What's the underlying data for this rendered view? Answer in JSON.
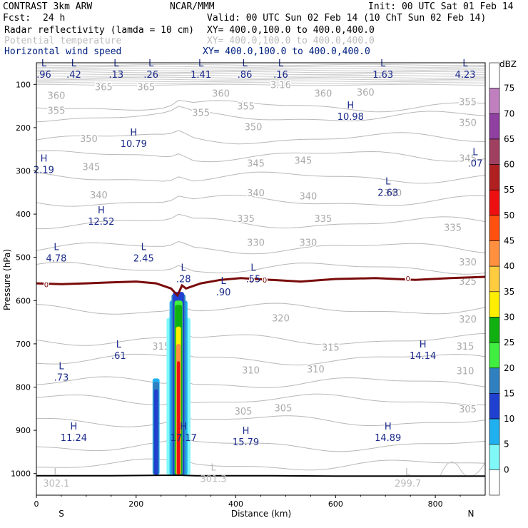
{
  "header": {
    "title_left": "CONTRAST  3km ARW",
    "center": "NCAR/MMM",
    "init": "Init: 00 UTC Sat 01 Feb 14",
    "fcst_label": "Fcst:",
    "fcst_value": "24 h",
    "valid": "Valid: 00 UTC Sun 02 Feb 14 (10 ChT Sun 02 Feb 14)",
    "fields": [
      {
        "name": "Radar reflectivity (lamda = 10 cm)",
        "xy": "XY= 400.0,100.0 to 400.0,400.0",
        "color": "#000000"
      },
      {
        "name": "Potential temperature",
        "xy": "XY= 400.0,100.0 to 400.0,400.0",
        "color": "#bbbbbb"
      },
      {
        "name": "Horizontal wind speed",
        "xy": "XY= 400.0,100.0 to 400.0,400.0",
        "color": "#002080"
      }
    ]
  },
  "chart_data": {
    "type": "cross-section",
    "xlabel": "Distance (km)",
    "ylabel": "Pressure (hPa)",
    "xlim": [
      0,
      900
    ],
    "ylim": [
      1050,
      50
    ],
    "x_ticks": [
      0,
      200,
      400,
      600,
      800
    ],
    "y_ticks": [
      100,
      200,
      300,
      400,
      500,
      600,
      700,
      800,
      900,
      1000
    ],
    "x_end_labels": {
      "left": "S",
      "right": "N"
    },
    "colorbar": {
      "label": "dBZ",
      "ticks": [
        "75",
        "70",
        "65",
        "60",
        "55",
        "50",
        "45",
        "40",
        "35",
        "30",
        "25",
        "20",
        "15",
        "10",
        "5",
        "0"
      ],
      "colors": [
        "#ffffff",
        "#c080c0",
        "#9040a0",
        "#a04060",
        "#b02020",
        "#ee1010",
        "#ff5010",
        "#ff9040",
        "#ffcc40",
        "#ffee00",
        "#10b010",
        "#40ee40",
        "#3080c0",
        "#2040d0",
        "#20b0f0",
        "#80f8f8",
        "#ffffff"
      ]
    },
    "theta_labels": [
      {
        "text": "360",
        "x": 40,
        "p": 125
      },
      {
        "text": "365",
        "x": 135,
        "p": 105
      },
      {
        "text": "365",
        "x": 220,
        "p": 105
      },
      {
        "text": "360",
        "x": 370,
        "p": 120
      },
      {
        "text": "360",
        "x": 575,
        "p": 120
      },
      {
        "text": "360",
        "x": 660,
        "p": 118
      },
      {
        "text": "3.16",
        "x": 490,
        "p": 100
      },
      {
        "text": "355",
        "x": 40,
        "p": 160
      },
      {
        "text": "355",
        "x": 330,
        "p": 165
      },
      {
        "text": "355",
        "x": 420,
        "p": 150
      },
      {
        "text": "355",
        "x": 865,
        "p": 140
      },
      {
        "text": "350",
        "x": 105,
        "p": 225
      },
      {
        "text": "350",
        "x": 435,
        "p": 198
      },
      {
        "text": "350",
        "x": 865,
        "p": 188
      },
      {
        "text": "345",
        "x": 110,
        "p": 290
      },
      {
        "text": "345",
        "x": 440,
        "p": 282
      },
      {
        "text": "345",
        "x": 535,
        "p": 275
      },
      {
        "text": "345",
        "x": 865,
        "p": 270
      },
      {
        "text": "340",
        "x": 125,
        "p": 355
      },
      {
        "text": "340",
        "x": 440,
        "p": 350
      },
      {
        "text": "340",
        "x": 545,
        "p": 358
      },
      {
        "text": "340",
        "x": 715,
        "p": 350
      },
      {
        "text": "335",
        "x": 420,
        "p": 410
      },
      {
        "text": "335",
        "x": 575,
        "p": 410
      },
      {
        "text": "335",
        "x": 835,
        "p": 430
      },
      {
        "text": "330",
        "x": 440,
        "p": 465
      },
      {
        "text": "330",
        "x": 545,
        "p": 465
      },
      {
        "text": "330",
        "x": 865,
        "p": 510
      },
      {
        "text": "325",
        "x": 865,
        "p": 555
      },
      {
        "text": "320",
        "x": 490,
        "p": 640
      },
      {
        "text": "320",
        "x": 865,
        "p": 642
      },
      {
        "text": "315",
        "x": 250,
        "p": 705
      },
      {
        "text": "315",
        "x": 590,
        "p": 708
      },
      {
        "text": "315",
        "x": 860,
        "p": 705
      },
      {
        "text": "310",
        "x": 430,
        "p": 760
      },
      {
        "text": "310",
        "x": 560,
        "p": 758
      },
      {
        "text": "310",
        "x": 860,
        "p": 762
      },
      {
        "text": "305",
        "x": 415,
        "p": 855
      },
      {
        "text": "305",
        "x": 495,
        "p": 848
      },
      {
        "text": "305",
        "x": 865,
        "p": 850
      }
    ],
    "wind_extrema": [
      {
        "type": "L",
        "value": ".96",
        "x": 15,
        "p": 65
      },
      {
        "type": "L",
        "value": ".42",
        "x": 75,
        "p": 65
      },
      {
        "type": "L",
        "value": ".13",
        "x": 160,
        "p": 65
      },
      {
        "type": "L",
        "value": ".26",
        "x": 230,
        "p": 65
      },
      {
        "type": "L",
        "value": "1.41",
        "x": 330,
        "p": 65
      },
      {
        "type": "L",
        "value": ".86",
        "x": 418,
        "p": 65
      },
      {
        "type": "L",
        "value": ".16",
        "x": 490,
        "p": 65
      },
      {
        "type": "L",
        "value": "1.63",
        "x": 695,
        "p": 65
      },
      {
        "type": "L",
        "value": "4.23",
        "x": 860,
        "p": 65
      },
      {
        "type": "H",
        "value": "10.98",
        "x": 630,
        "p": 162
      },
      {
        "type": "H",
        "value": "10.79",
        "x": 195,
        "p": 225
      },
      {
        "type": "H",
        "value": "2.19",
        "x": 15,
        "p": 285
      },
      {
        "type": "L",
        "value": ".07",
        "x": 880,
        "p": 270
      },
      {
        "type": "L",
        "value": "2.63",
        "x": 705,
        "p": 338
      },
      {
        "type": "H",
        "value": "12.52",
        "x": 130,
        "p": 405
      },
      {
        "type": "L",
        "value": "4.78",
        "x": 40,
        "p": 490
      },
      {
        "type": "L",
        "value": "2.45",
        "x": 215,
        "p": 490
      },
      {
        "type": "L",
        "value": ".28",
        "x": 295,
        "p": 538
      },
      {
        "type": "L",
        "value": ".55",
        "x": 435,
        "p": 538
      },
      {
        "type": "L",
        "value": ".90",
        "x": 375,
        "p": 568
      },
      {
        "type": "L",
        "value": ".61",
        "x": 165,
        "p": 715
      },
      {
        "type": "H",
        "value": "14.14",
        "x": 775,
        "p": 715
      },
      {
        "type": "L",
        "value": ".73",
        "x": 50,
        "p": 765
      },
      {
        "type": "H",
        "value": "11.24",
        "x": 75,
        "p": 905
      },
      {
        "type": "H",
        "value": "17.17",
        "x": 295,
        "p": 905
      },
      {
        "type": "H",
        "value": "15.79",
        "x": 420,
        "p": 915
      },
      {
        "type": "H",
        "value": "14.89",
        "x": 705,
        "p": 905
      },
      {
        "type": "L",
        "value": "302.1",
        "x": 40,
        "p": 1010
      },
      {
        "type": "L",
        "value": "301.3",
        "x": 355,
        "p": 1000
      },
      {
        "type": "L",
        "value": "299.7",
        "x": 745,
        "p": 1010
      }
    ],
    "zero_contour": {
      "label": "0",
      "x": [
        0,
        50,
        100,
        150,
        200,
        240,
        270,
        283,
        292,
        300,
        330,
        370,
        410,
        470,
        530,
        600,
        680,
        760,
        830,
        900
      ],
      "p": [
        560,
        562,
        560,
        558,
        556,
        560,
        572,
        588,
        565,
        572,
        560,
        552,
        548,
        552,
        556,
        550,
        548,
        552,
        548,
        545
      ]
    },
    "zero_labels": [
      {
        "x": 20,
        "p": 562
      },
      {
        "x": 432,
        "p": 552
      },
      {
        "x": 458,
        "p": 552
      },
      {
        "x": 745,
        "p": 548
      }
    ],
    "surface_line": {
      "x": [
        0,
        150,
        250,
        290,
        320,
        450,
        600,
        800,
        900
      ],
      "p": [
        1005,
        1005,
        1004,
        1004,
        1005,
        1005,
        1006,
        1006,
        1006
      ]
    },
    "reflectivity_cells": [
      {
        "x_center": 240,
        "width": 14,
        "p_top": 780,
        "p_bottom": 1003,
        "core": [
          {
            "c": "#20b0f0",
            "w": 14,
            "t": 780
          },
          {
            "c": "#3080c0",
            "w": 12,
            "t": 788
          },
          {
            "c": "#2040d0",
            "w": 8,
            "t": 805
          }
        ]
      },
      {
        "x_center": 285,
        "width": 50,
        "p_top": 560,
        "p_bottom": 1003,
        "core": [
          {
            "c": "#80f8f8",
            "w": 48,
            "t": 640
          },
          {
            "c": "#20b0f0",
            "w": 36,
            "t": 600
          },
          {
            "c": "#3080c0",
            "w": 28,
            "t": 585
          },
          {
            "c": "#2040d0",
            "w": 22,
            "t": 580
          },
          {
            "c": "#40ee40",
            "w": 16,
            "t": 600
          },
          {
            "c": "#10b010",
            "w": 14,
            "t": 610
          },
          {
            "c": "#ffee00",
            "w": 10,
            "t": 660
          },
          {
            "c": "#ff9040",
            "w": 9,
            "t": 700
          },
          {
            "c": "#ee1010",
            "w": 6,
            "t": 740
          }
        ]
      }
    ]
  }
}
